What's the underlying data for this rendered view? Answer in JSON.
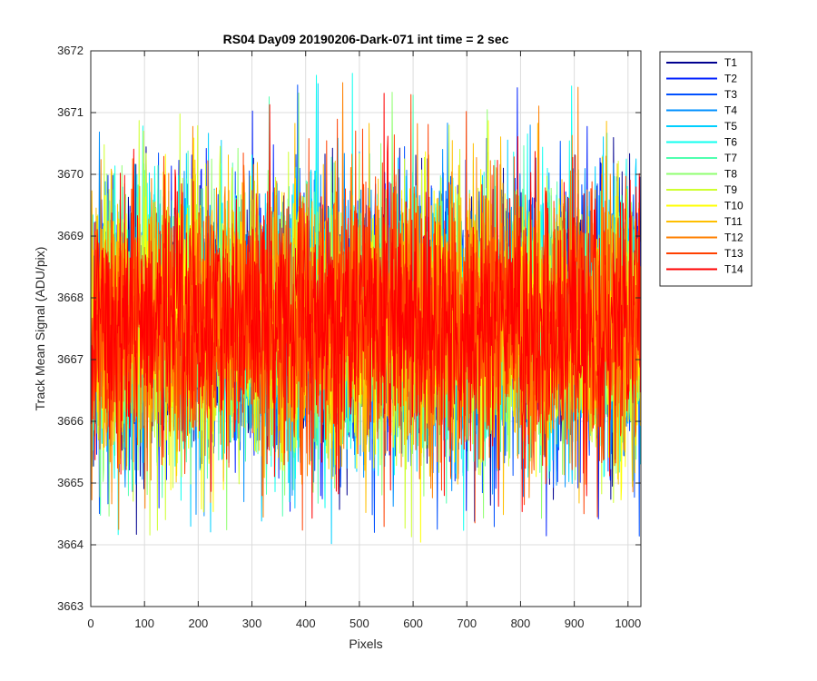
{
  "chart_data": {
    "type": "line",
    "title": "RS04 Day09 20190206-Dark-071 int time = 2 sec",
    "xlabel": "Pixels",
    "ylabel": "Track Mean Signal (ADU/pix)",
    "xlim": [
      0,
      1024
    ],
    "ylim": [
      3663,
      3672
    ],
    "xticks": [
      0,
      100,
      200,
      300,
      400,
      500,
      600,
      700,
      800,
      900,
      1000
    ],
    "yticks": [
      3663,
      3664,
      3665,
      3666,
      3667,
      3668,
      3669,
      3670,
      3671,
      3672
    ],
    "grid": true,
    "legend_location": "outside-top-right",
    "n_points": 1024,
    "noise_summary": {
      "mean": 3667.6,
      "std": 1.1,
      "min": 3664.0,
      "max": 3671.7
    },
    "series": [
      {
        "name": "T1",
        "color": "#00008F"
      },
      {
        "name": "T2",
        "color": "#0020FF"
      },
      {
        "name": "T3",
        "color": "#0050FF"
      },
      {
        "name": "T4",
        "color": "#0090FF"
      },
      {
        "name": "T5",
        "color": "#00CFFF"
      },
      {
        "name": "T6",
        "color": "#10FFEF"
      },
      {
        "name": "T7",
        "color": "#50FFAF"
      },
      {
        "name": "T8",
        "color": "#8FFF70"
      },
      {
        "name": "T9",
        "color": "#CFFF30"
      },
      {
        "name": "T10",
        "color": "#FFFF00"
      },
      {
        "name": "T11",
        "color": "#FFBF00"
      },
      {
        "name": "T12",
        "color": "#FF8000"
      },
      {
        "name": "T13",
        "color": "#FF4000"
      },
      {
        "name": "T14",
        "color": "#FF0000"
      }
    ]
  }
}
